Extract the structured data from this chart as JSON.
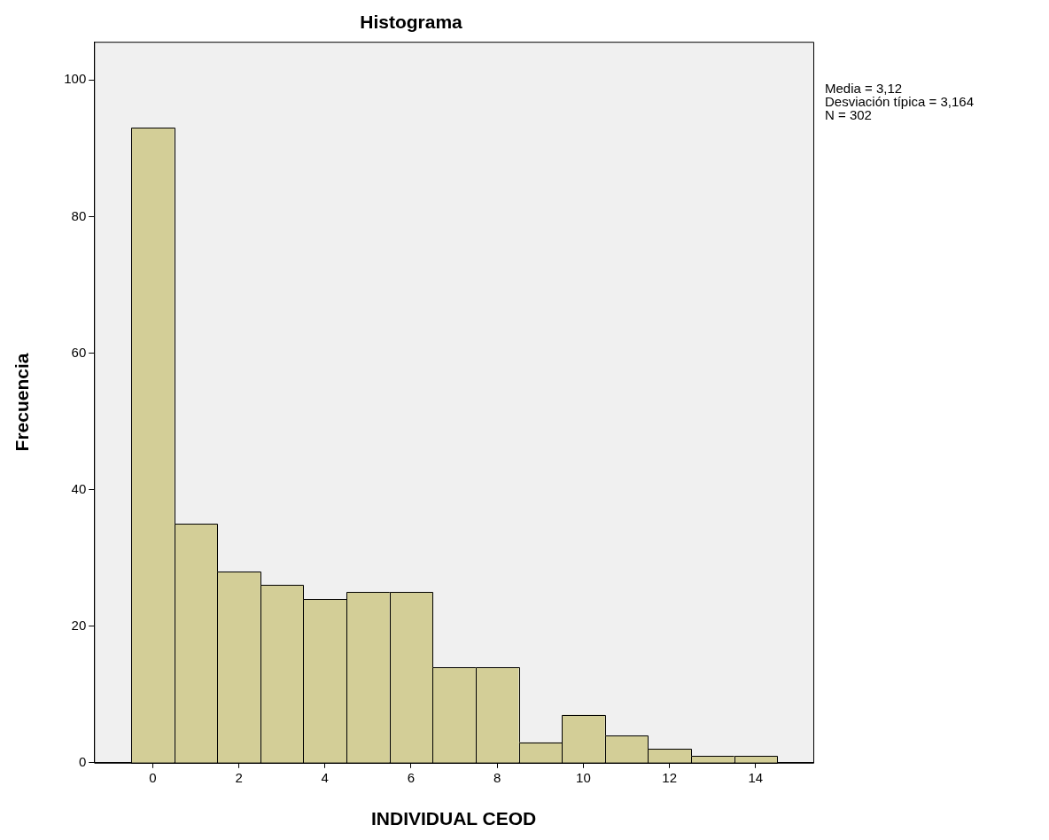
{
  "chart_data": {
    "type": "histogram",
    "title": "Histograma",
    "xlabel": "INDIVIDUAL CEOD",
    "ylabel": "Frecuencia",
    "bins": [
      -0.5,
      0.5,
      1.5,
      2.5,
      3.5,
      4.5,
      5.5,
      6.5,
      7.5,
      8.5,
      9.5,
      10.5,
      11.5,
      12.5,
      13.5,
      14.5
    ],
    "values": [
      93,
      35,
      28,
      26,
      24,
      25,
      25,
      14,
      14,
      3,
      7,
      4,
      2,
      1,
      1
    ],
    "color": "#d3ce97",
    "xlim": [
      -1.36,
      15.34
    ],
    "xticks": [
      0,
      2,
      4,
      6,
      8,
      10,
      12,
      14
    ],
    "ylim": [
      0,
      105.6
    ],
    "yticks": [
      0,
      20,
      40,
      60,
      80,
      100
    ],
    "grid": false,
    "legend": false,
    "annotations": [
      "Media = 3,12",
      "Desviación típica = 3,164",
      "N = 302"
    ]
  }
}
